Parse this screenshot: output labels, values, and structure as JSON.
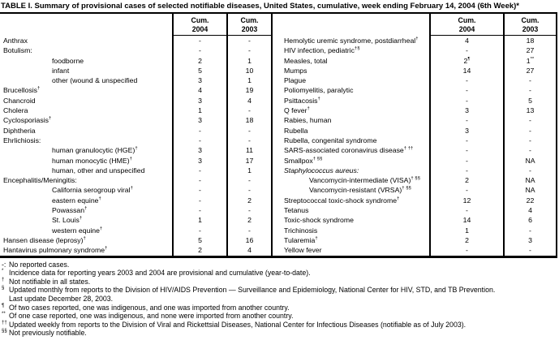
{
  "title": "TABLE I. Summary of provisional cases of selected notifiable diseases, United States, cumulative, week ending February 14, 2004 (6th Week)*",
  "header": {
    "cum_label": "Cum.",
    "year_2004": "2004",
    "year_2003": "2003"
  },
  "left_rows": [
    {
      "name": "Anthrax",
      "sup": "",
      "indent": 0,
      "italic": false,
      "v2004": "-",
      "s2004": "",
      "v2003": "-",
      "s2003": ""
    },
    {
      "name": "Botulism:",
      "sup": "",
      "indent": 0,
      "italic": false,
      "v2004": "-",
      "s2004": "",
      "v2003": "-",
      "s2003": ""
    },
    {
      "name": "foodborne",
      "sup": "",
      "indent": 1,
      "italic": false,
      "v2004": "2",
      "s2004": "",
      "v2003": "1",
      "s2003": ""
    },
    {
      "name": "infant",
      "sup": "",
      "indent": 1,
      "italic": false,
      "v2004": "5",
      "s2004": "",
      "v2003": "10",
      "s2003": ""
    },
    {
      "name": "other (wound & unspecified",
      "sup": "",
      "indent": 1,
      "italic": false,
      "v2004": "3",
      "s2004": "",
      "v2003": "1",
      "s2003": ""
    },
    {
      "name": "Brucellosis",
      "sup": "†",
      "indent": 0,
      "italic": false,
      "v2004": "4",
      "s2004": "",
      "v2003": "19",
      "s2003": ""
    },
    {
      "name": "Chancroid",
      "sup": "",
      "indent": 0,
      "italic": false,
      "v2004": "3",
      "s2004": "",
      "v2003": "4",
      "s2003": ""
    },
    {
      "name": "Cholera",
      "sup": "",
      "indent": 0,
      "italic": false,
      "v2004": "1",
      "s2004": "",
      "v2003": "-",
      "s2003": ""
    },
    {
      "name": "Cyclosporiasis",
      "sup": "†",
      "indent": 0,
      "italic": false,
      "v2004": "3",
      "s2004": "",
      "v2003": "18",
      "s2003": ""
    },
    {
      "name": "Diphtheria",
      "sup": "",
      "indent": 0,
      "italic": false,
      "v2004": "-",
      "s2004": "",
      "v2003": "-",
      "s2003": ""
    },
    {
      "name": "Ehrlichiosis:",
      "sup": "",
      "indent": 0,
      "italic": false,
      "v2004": "-",
      "s2004": "",
      "v2003": "-",
      "s2003": ""
    },
    {
      "name": "human granulocytic (HGE)",
      "sup": "†",
      "indent": 1,
      "italic": false,
      "v2004": "3",
      "s2004": "",
      "v2003": "11",
      "s2003": ""
    },
    {
      "name": "human monocytic (HME)",
      "sup": "†",
      "indent": 1,
      "italic": false,
      "v2004": "3",
      "s2004": "",
      "v2003": "17",
      "s2003": ""
    },
    {
      "name": "human, other and unspecified",
      "sup": "",
      "indent": 1,
      "italic": false,
      "v2004": "-",
      "s2004": "",
      "v2003": "1",
      "s2003": ""
    },
    {
      "name": "Encephalitis/Meningitis:",
      "sup": "",
      "indent": 0,
      "italic": false,
      "v2004": "-",
      "s2004": "",
      "v2003": "-",
      "s2003": ""
    },
    {
      "name": "California serogroup viral",
      "sup": "†",
      "indent": 1,
      "italic": false,
      "v2004": "-",
      "s2004": "",
      "v2003": "-",
      "s2003": ""
    },
    {
      "name": "eastern equine",
      "sup": "†",
      "indent": 1,
      "italic": false,
      "v2004": "-",
      "s2004": "",
      "v2003": "2",
      "s2003": ""
    },
    {
      "name": "Powassan",
      "sup": "†",
      "indent": 1,
      "italic": false,
      "v2004": "-",
      "s2004": "",
      "v2003": "-",
      "s2003": ""
    },
    {
      "name": "St. Louis",
      "sup": "†",
      "indent": 1,
      "italic": false,
      "v2004": "1",
      "s2004": "",
      "v2003": "2",
      "s2003": ""
    },
    {
      "name": "western equine",
      "sup": "†",
      "indent": 1,
      "italic": false,
      "v2004": "-",
      "s2004": "",
      "v2003": "-",
      "s2003": ""
    },
    {
      "name": "Hansen disease (leprosy)",
      "sup": "†",
      "indent": 0,
      "italic": false,
      "v2004": "5",
      "s2004": "",
      "v2003": "16",
      "s2003": ""
    },
    {
      "name": "Hantavirus pulmonary syndrome",
      "sup": "†",
      "indent": 0,
      "italic": false,
      "v2004": "2",
      "s2004": "",
      "v2003": "4",
      "s2003": ""
    }
  ],
  "right_rows": [
    {
      "name": "Hemolytic uremic syndrome, postdiarrheal",
      "sup": "†",
      "indent": 0,
      "italic": false,
      "v2004": "4",
      "s2004": "",
      "v2003": "18",
      "s2003": ""
    },
    {
      "name": "HIV infection, pediatric",
      "sup": "†§",
      "indent": 0,
      "italic": false,
      "v2004": "-",
      "s2004": "",
      "v2003": "27",
      "s2003": ""
    },
    {
      "name": "Measles, total",
      "sup": "",
      "indent": 0,
      "italic": false,
      "v2004": "2",
      "s2004": "¶",
      "v2003": "1",
      "s2003": "**"
    },
    {
      "name": "Mumps",
      "sup": "",
      "indent": 0,
      "italic": false,
      "v2004": "14",
      "s2004": "",
      "v2003": "27",
      "s2003": ""
    },
    {
      "name": "Plague",
      "sup": "",
      "indent": 0,
      "italic": false,
      "v2004": "-",
      "s2004": "",
      "v2003": "-",
      "s2003": ""
    },
    {
      "name": "Poliomyelitis, paralytic",
      "sup": "",
      "indent": 0,
      "italic": false,
      "v2004": "-",
      "s2004": "",
      "v2003": "-",
      "s2003": ""
    },
    {
      "name": "Psittacosis",
      "sup": "†",
      "indent": 0,
      "italic": false,
      "v2004": "-",
      "s2004": "",
      "v2003": "5",
      "s2003": ""
    },
    {
      "name": "Q fever",
      "sup": "†",
      "indent": 0,
      "italic": false,
      "v2004": "3",
      "s2004": "",
      "v2003": "13",
      "s2003": ""
    },
    {
      "name": "Rabies, human",
      "sup": "",
      "indent": 0,
      "italic": false,
      "v2004": "-",
      "s2004": "",
      "v2003": "-",
      "s2003": ""
    },
    {
      "name": "Rubella",
      "sup": "",
      "indent": 0,
      "italic": false,
      "v2004": "3",
      "s2004": "",
      "v2003": "-",
      "s2003": ""
    },
    {
      "name": "Rubella, congenital syndrome",
      "sup": "",
      "indent": 0,
      "italic": false,
      "v2004": "-",
      "s2004": "",
      "v2003": "-",
      "s2003": ""
    },
    {
      "name": "SARS-associated coronavirus disease",
      "sup": "† ††",
      "indent": 0,
      "italic": false,
      "v2004": "-",
      "s2004": "",
      "v2003": "-",
      "s2003": ""
    },
    {
      "name": "Smallpox",
      "sup": "† §§",
      "indent": 0,
      "italic": false,
      "v2004": "-",
      "s2004": "",
      "v2003": "NA",
      "s2003": ""
    },
    {
      "name": "Staphylococcus aureus:",
      "sup": "",
      "indent": 0,
      "italic": true,
      "v2004": "-",
      "s2004": "",
      "v2003": "-",
      "s2003": ""
    },
    {
      "name": "Vancomycin-intermediate (VISA)",
      "sup": "† §§",
      "indent": 1,
      "italic": false,
      "v2004": "2",
      "s2004": "",
      "v2003": "NA",
      "s2003": ""
    },
    {
      "name": "Vancomycin-resistant (VRSA)",
      "sup": "† §§",
      "indent": 1,
      "italic": false,
      "v2004": "-",
      "s2004": "",
      "v2003": "NA",
      "s2003": ""
    },
    {
      "name": "Streptococcal toxic-shock syndrome",
      "sup": "†",
      "indent": 0,
      "italic": false,
      "v2004": "12",
      "s2004": "",
      "v2003": "22",
      "s2003": ""
    },
    {
      "name": "Tetanus",
      "sup": "",
      "indent": 0,
      "italic": false,
      "v2004": "-",
      "s2004": "",
      "v2003": "4",
      "s2003": ""
    },
    {
      "name": "Toxic-shock syndrome",
      "sup": "",
      "indent": 0,
      "italic": false,
      "v2004": "14",
      "s2004": "",
      "v2003": "6",
      "s2003": ""
    },
    {
      "name": "Trichinosis",
      "sup": "",
      "indent": 0,
      "italic": false,
      "v2004": "1",
      "s2004": "",
      "v2003": "-",
      "s2003": ""
    },
    {
      "name": "Tularemia",
      "sup": "†",
      "indent": 0,
      "italic": false,
      "v2004": "2",
      "s2004": "",
      "v2003": "3",
      "s2003": ""
    },
    {
      "name": "Yellow fever",
      "sup": "",
      "indent": 0,
      "italic": false,
      "v2004": "-",
      "s2004": "",
      "v2003": "-",
      "s2003": ""
    }
  ],
  "footnotes": [
    {
      "mark": "-:",
      "plain": true,
      "text": "No reported cases."
    },
    {
      "mark": "*",
      "plain": false,
      "text": "Incidence data for reporting years 2003 and 2004 are provisional and cumulative (year-to-date)."
    },
    {
      "mark": "†",
      "plain": false,
      "text": "Not notifiable in all states."
    },
    {
      "mark": "§",
      "plain": false,
      "text": "Updated monthly from reports to the Division of HIV/AIDS Prevention — Surveillance and Epidemiology, National Center for HIV, STD, and TB Prevention."
    },
    {
      "mark": "",
      "plain": true,
      "text": "Last update December 28, 2003."
    },
    {
      "mark": "¶",
      "plain": false,
      "text": "Of two cases reported, one was indigenous, and one was imported from another country."
    },
    {
      "mark": "**",
      "plain": false,
      "text": "Of one case reported, one was indigenous, and none were imported from another country."
    },
    {
      "mark": "††",
      "plain": false,
      "text": "Updated weekly from reports to the Division of Viral and Rickettsial Diseases, National Center for Infectious Diseases (notifiable as of July 2003)."
    },
    {
      "mark": "§§",
      "plain": false,
      "text": "Not previously notifiable."
    }
  ]
}
